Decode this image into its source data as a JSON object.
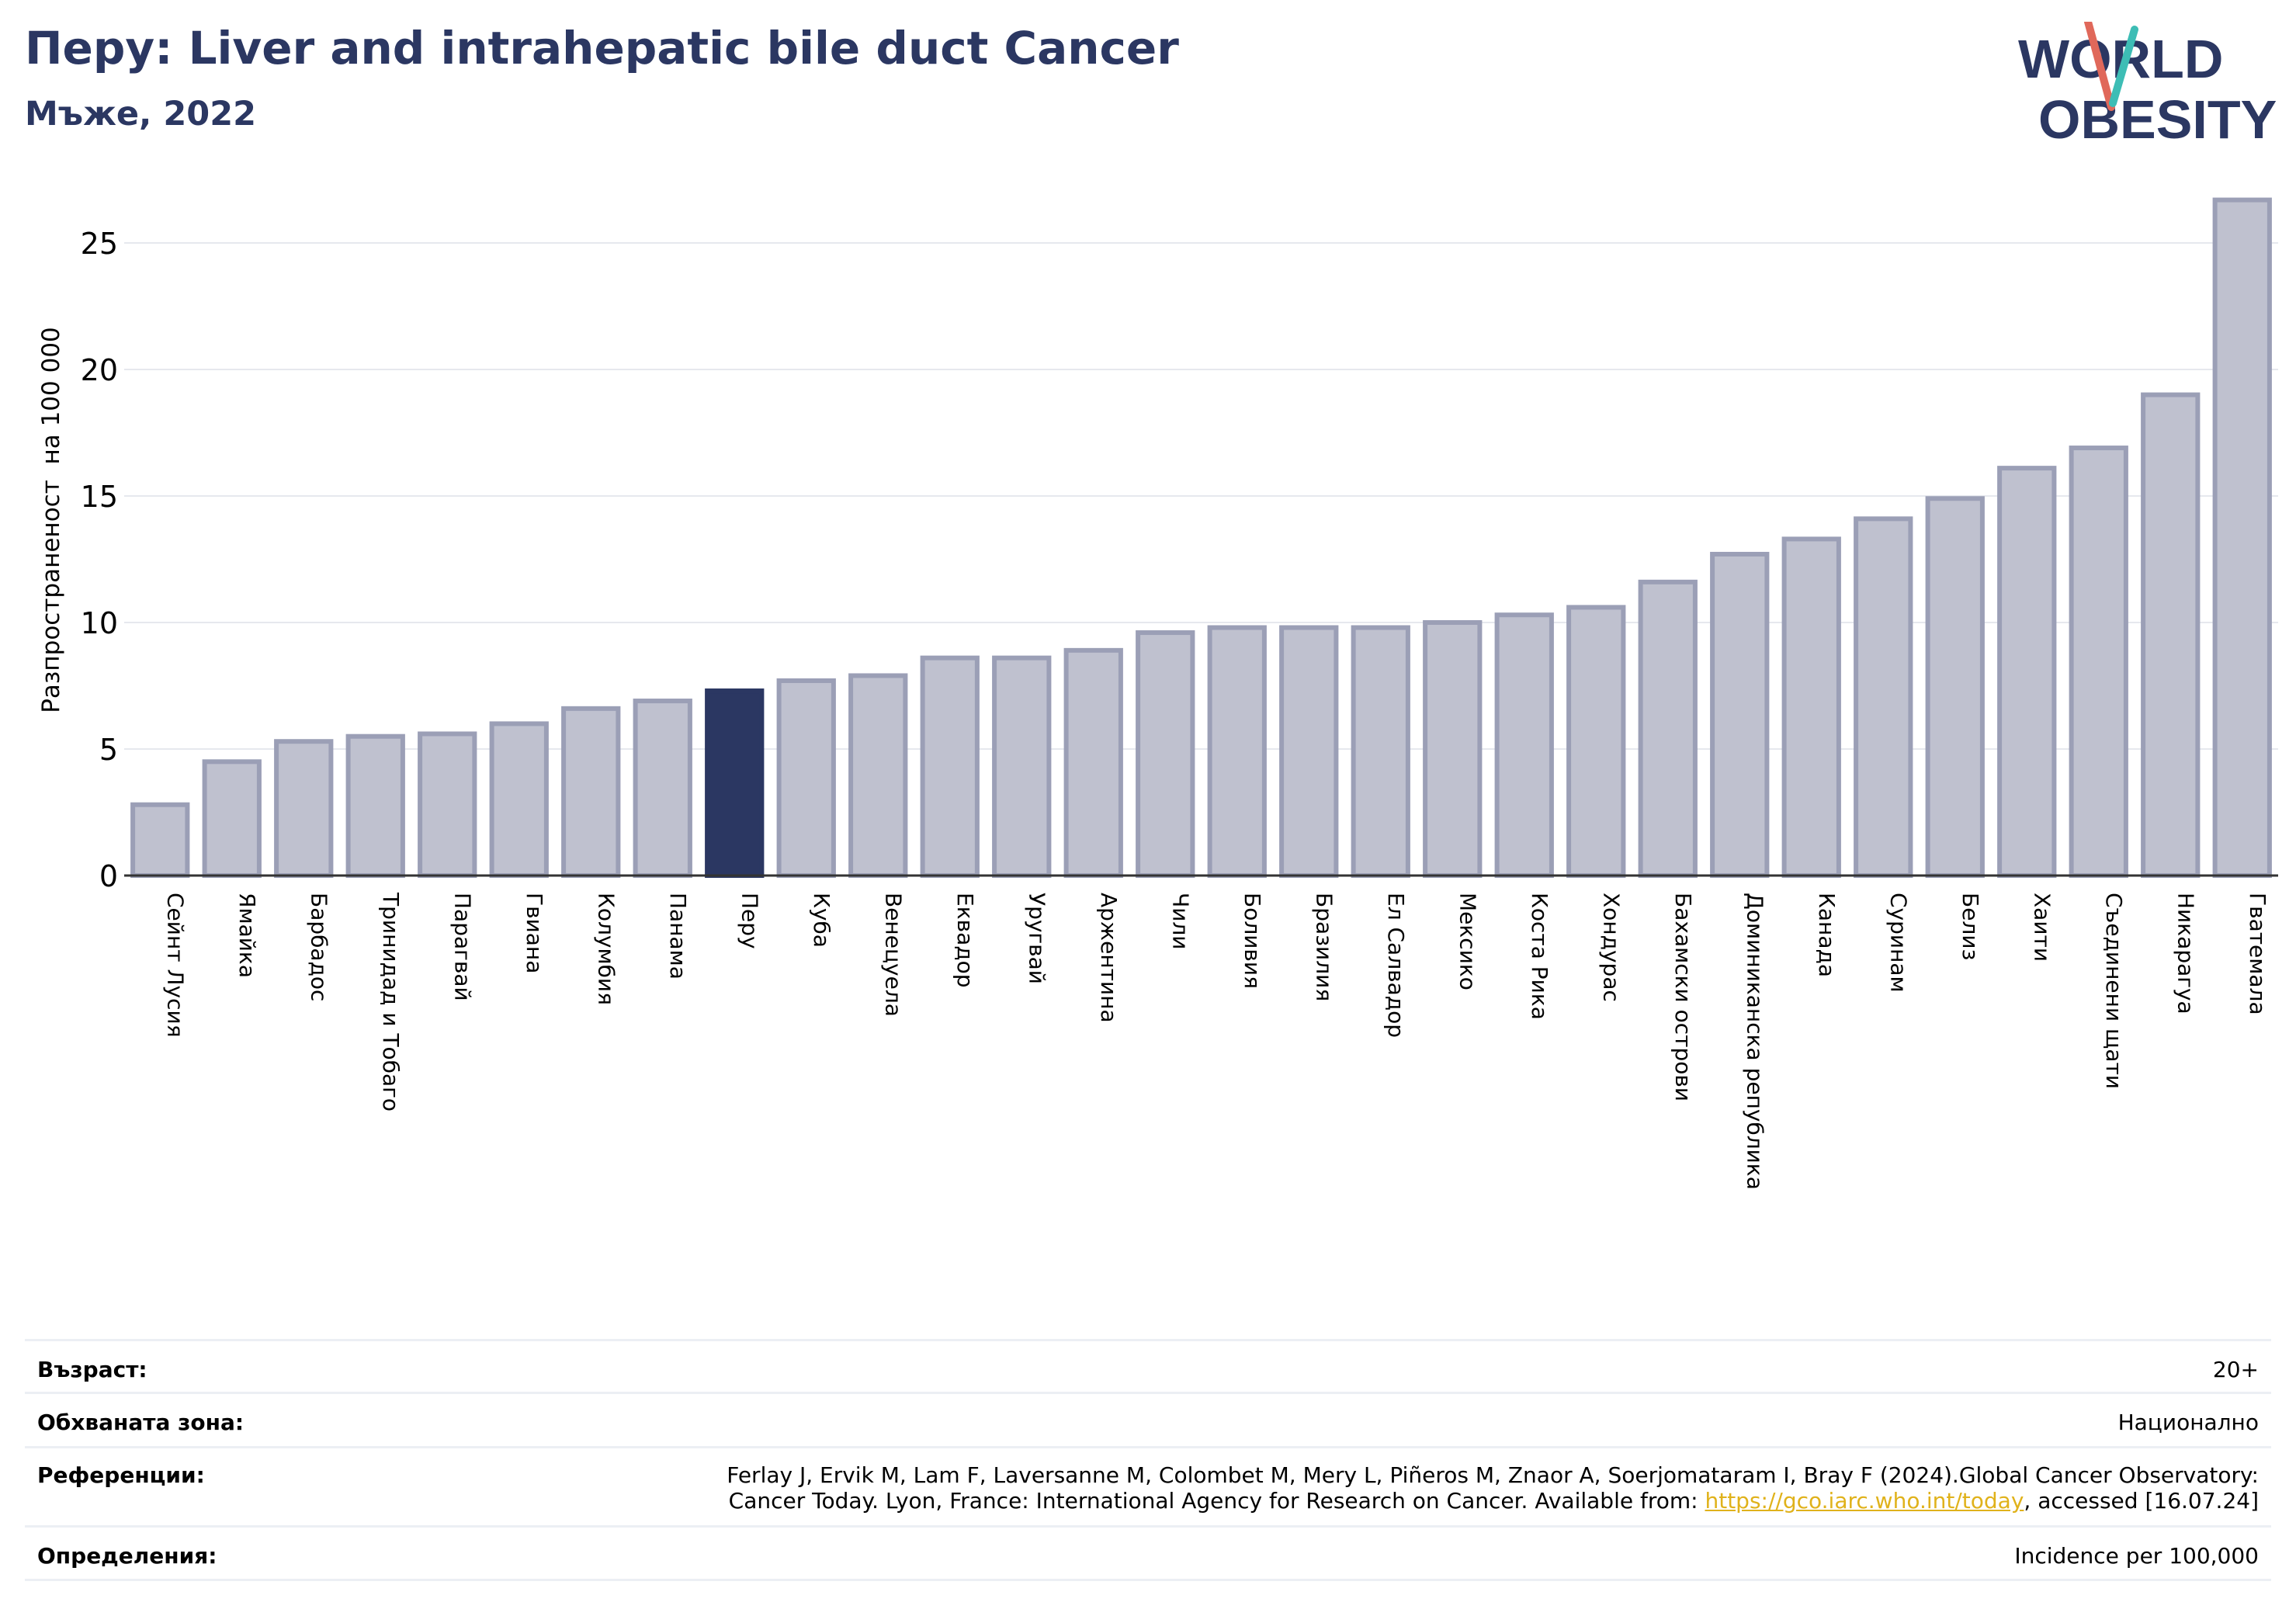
{
  "header": {
    "title": "Перу: Liver and intrahepatic bile duct Cancer",
    "subtitle": "Мъже, 2022"
  },
  "logo": {
    "line1": "WORLD",
    "line2": "OBESITY"
  },
  "chart_data": {
    "type": "bar",
    "title": "Перу: Liver and intrahepatic bile duct Cancer",
    "subtitle": "Мъже, 2022",
    "ylabel": "Разпространеност  на 100 000",
    "xlabel": "",
    "ylim": [
      0,
      27
    ],
    "yticks": [
      0,
      5,
      10,
      15,
      20,
      25
    ],
    "grid": true,
    "highlight": "Перу",
    "colors": {
      "bar": "#bfc1cf",
      "bar_edge": "#9b9fb6",
      "highlight": "#2b3762"
    },
    "categories": [
      "Сейнт Лусия",
      "Ямайка",
      "Барбадос",
      "Тринидад и Тобаго",
      "Парагвай",
      "Гвиана",
      "Колумбия",
      "Панама",
      "Перу",
      "Куба",
      "Венецуела",
      "Еквадор",
      "Уругвай",
      "Аржентина",
      "Чили",
      "Боливия",
      "Бразилия",
      "Ел Салвадор",
      "Мексико",
      "Коста Рика",
      "Хондурас",
      "Бахамски острови",
      "Доминиканска република",
      "Канада",
      "Суринам",
      "Белиз",
      "Хаити",
      "Съединени щати",
      "Никарагуа",
      "Гватемала"
    ],
    "values": [
      2.8,
      4.5,
      5.3,
      5.5,
      5.6,
      6.0,
      6.6,
      6.9,
      7.3,
      7.7,
      7.9,
      8.6,
      8.6,
      8.9,
      9.6,
      9.8,
      9.8,
      9.8,
      10.0,
      10.3,
      10.6,
      11.6,
      12.7,
      13.3,
      14.1,
      14.9,
      16.1,
      16.9,
      19.0,
      26.7
    ]
  },
  "info": {
    "age_label": "Възраст:",
    "age_value": "20+",
    "area_label": "Обхваната зона:",
    "area_value": "Национално",
    "ref_label": "Референции:",
    "ref_line1": "Ferlay J, Ervik M, Lam F, Laversanne M, Colombet M, Mery L, Piñeros M, Znaor A, Soerjomataram I, Bray F (2024).Global Cancer Observatory:",
    "ref_line2_pre": "Cancer Today. Lyon, France: International Agency for Research on Cancer. Available from: ",
    "ref_link": "https://gco.iarc.who.int/today",
    "ref_line2_post": ", accessed [16.07.24]",
    "def_label": "Определения:",
    "def_value": "Incidence per 100,000"
  }
}
